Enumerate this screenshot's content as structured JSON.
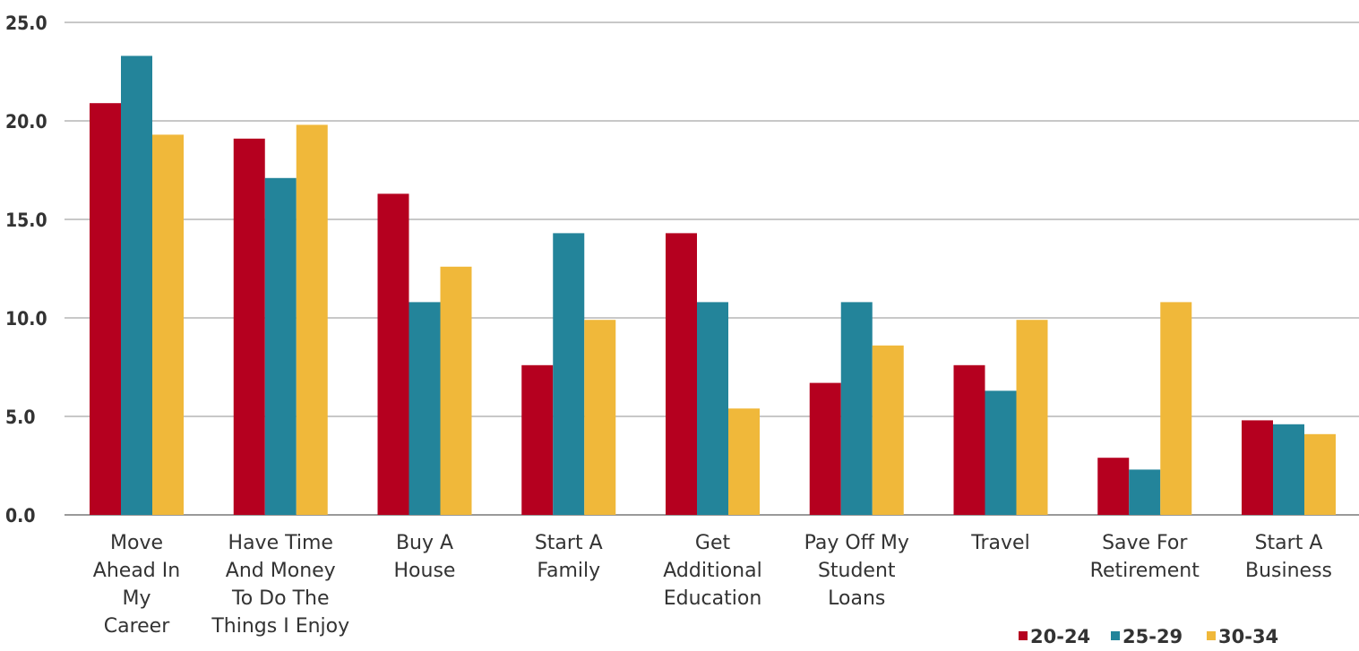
{
  "chart_data": {
    "type": "bar",
    "title": "",
    "xlabel": "",
    "ylabel": "",
    "ylim": [
      0,
      25
    ],
    "yticks": [
      "0.0",
      "5.0",
      "10.0",
      "15.0",
      "20.0",
      "25.0"
    ],
    "grid": true,
    "legend_position": "bottom-right",
    "categories": [
      [
        "Move",
        "Ahead In",
        "My",
        "Career"
      ],
      [
        "Have Time",
        "And Money",
        "To Do The",
        "Things I Enjoy"
      ],
      [
        "Buy A",
        "House"
      ],
      [
        "Start A",
        "Family"
      ],
      [
        "Get",
        "Additional",
        "Education"
      ],
      [
        "Pay Off My",
        "Student",
        "Loans"
      ],
      [
        "Travel"
      ],
      [
        "Save For",
        "Retirement"
      ],
      [
        "Start A",
        "Business"
      ]
    ],
    "series": [
      {
        "name": "20-24",
        "color": "#b5001f",
        "values": [
          20.9,
          19.1,
          16.3,
          7.6,
          14.3,
          6.7,
          7.6,
          2.9,
          4.8
        ]
      },
      {
        "name": "25-29",
        "color": "#23849a",
        "values": [
          23.3,
          17.1,
          10.8,
          14.3,
          10.8,
          10.8,
          6.3,
          2.3,
          4.6
        ]
      },
      {
        "name": "30-34",
        "color": "#f0b83a",
        "values": [
          19.3,
          19.8,
          12.6,
          9.9,
          5.4,
          8.6,
          9.9,
          10.8,
          4.1
        ]
      }
    ]
  }
}
